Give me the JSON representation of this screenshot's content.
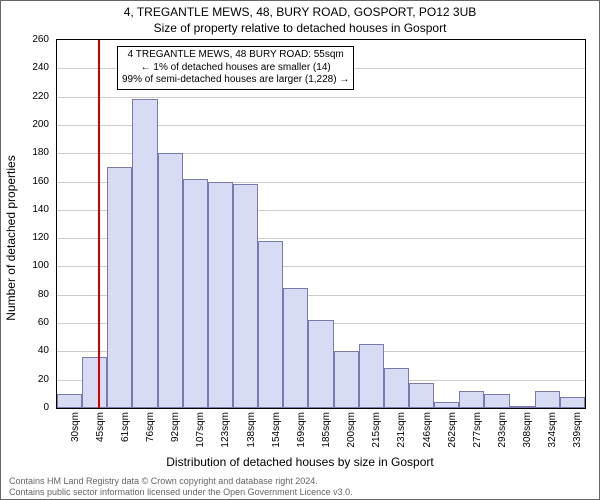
{
  "titles": {
    "line1": "4, TREGANTLE MEWS, 48, BURY ROAD, GOSPORT, PO12 3UB",
    "line2": "Size of property relative to detached houses in Gosport"
  },
  "axes": {
    "ylabel": "Number of detached properties",
    "xlabel": "Distribution of detached houses by size in Gosport",
    "ymax": 260,
    "ytick_step": 20,
    "x_start": 30,
    "x_bin_width": 15.4,
    "x_bins": 21,
    "xticks": [
      "30sqm",
      "45sqm",
      "61sqm",
      "76sqm",
      "92sqm",
      "107sqm",
      "123sqm",
      "138sqm",
      "154sqm",
      "169sqm",
      "185sqm",
      "200sqm",
      "215sqm",
      "231sqm",
      "246sqm",
      "262sqm",
      "277sqm",
      "293sqm",
      "308sqm",
      "324sqm",
      "339sqm"
    ],
    "grid_color": "#cccccc",
    "border_color": "#000000",
    "tick_fontsize": 10
  },
  "bars": {
    "values": [
      10,
      36,
      170,
      218,
      180,
      162,
      160,
      158,
      118,
      85,
      62,
      40,
      45,
      28,
      18,
      4,
      12,
      10,
      1,
      12,
      8
    ],
    "fill_color": "#d8dbf4",
    "edge_color": "#7a7ab0"
  },
  "marker": {
    "value_sqm": 55,
    "line_color": "#d40000"
  },
  "annotation": {
    "line1": "4 TREGANTLE MEWS, 48 BURY ROAD: 55sqm",
    "line2": "← 1% of detached houses are smaller (14)",
    "line3": "99% of semi-detached houses are larger (1,228) →"
  },
  "footer": {
    "line1": "Contains HM Land Registry data © Crown copyright and database right 2024.",
    "line2": "Contains public sector information licensed under the Open Government Licence v3.0."
  },
  "colors": {
    "bg": "#ffffff",
    "text": "#000000",
    "footer_text": "#666666"
  }
}
